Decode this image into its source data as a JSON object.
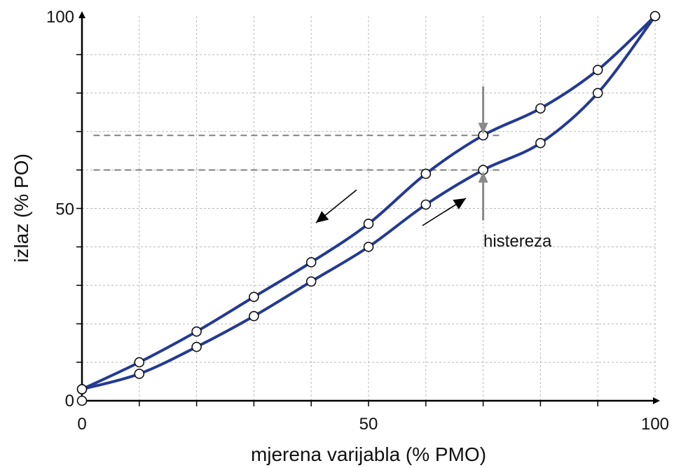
{
  "chart_data": {
    "type": "line",
    "xlabel": "mjerena varijabla (% PMO)",
    "ylabel": "izlaz (% PO)",
    "xlim": [
      0,
      100
    ],
    "ylim": [
      0,
      100
    ],
    "x_ticks": [
      0,
      50,
      100
    ],
    "y_ticks": [
      0,
      50,
      100
    ],
    "grid": true,
    "series": [
      {
        "x": [
          0,
          10,
          20,
          30,
          40,
          50,
          60,
          70,
          80,
          90,
          100
        ],
        "y": [
          3,
          10,
          18,
          27,
          36,
          46,
          59,
          69,
          76,
          86,
          100
        ]
      },
      {
        "x": [
          0,
          10,
          20,
          30,
          40,
          50,
          60,
          70,
          80,
          90,
          100
        ],
        "y": [
          3,
          7,
          14,
          22,
          31,
          40,
          51,
          60,
          67,
          80,
          100
        ]
      }
    ],
    "extra_points": [
      {
        "x": 0,
        "y": 0
      }
    ],
    "annotations": {
      "hysteresis_label": "histereza",
      "hysteresis_at_x": 70,
      "hysteresis_upper": 69,
      "hysteresis_lower": 60,
      "direction_arrows": [
        "decreasing",
        "increasing"
      ]
    },
    "colors": {
      "series": "#233a93",
      "grid": "#b8b8b8",
      "dashed": "#808080",
      "axis": "#000000",
      "arrow": "#8a8a8a"
    }
  }
}
